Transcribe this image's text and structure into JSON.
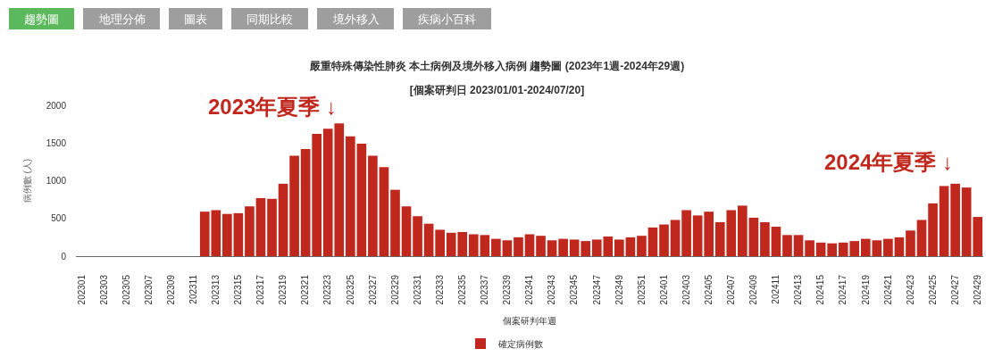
{
  "chart_data": {
    "type": "bar",
    "title": "嚴重特殊傳染性肺炎 本土病例及境外移入病例 趨勢圖 (2023年1週-2024年29週)",
    "subtitle": "[個案研判日 2023/01/01-2024/07/20]",
    "xlabel": "個案研判年週",
    "ylabel": "病例數 (人)",
    "categories": [
      "202301",
      null,
      "202303",
      null,
      "202305",
      null,
      "202307",
      null,
      "202309",
      null,
      "202311",
      null,
      "202313",
      null,
      "202315",
      null,
      "202317",
      null,
      "202319",
      null,
      "202321",
      null,
      "202323",
      null,
      "202325",
      null,
      "202327",
      null,
      "202329",
      null,
      "202331",
      null,
      "202333",
      null,
      "202335",
      null,
      "202337",
      null,
      "202339",
      null,
      "202341",
      null,
      "202343",
      null,
      "202345",
      null,
      "202347",
      null,
      "202349",
      null,
      "202351",
      null,
      "202401",
      null,
      "202403",
      null,
      "202405",
      null,
      "202407",
      null,
      "202409",
      null,
      "202411",
      null,
      "202413",
      null,
      "202415",
      null,
      "202417",
      null,
      "202419",
      null,
      "202421",
      null,
      "202423",
      null,
      "202425",
      null,
      "202427",
      null,
      "202429"
    ],
    "series": [
      {
        "name": "確定病例數",
        "color": "#c0281e",
        "values": [
          null,
          null,
          null,
          null,
          null,
          null,
          null,
          null,
          null,
          null,
          null,
          590,
          610,
          560,
          570,
          660,
          770,
          760,
          960,
          1330,
          1420,
          1620,
          1690,
          1760,
          1590,
          1490,
          1330,
          1180,
          880,
          660,
          530,
          430,
          350,
          310,
          320,
          290,
          280,
          230,
          210,
          250,
          290,
          270,
          210,
          230,
          220,
          200,
          220,
          260,
          220,
          250,
          270,
          380,
          420,
          480,
          610,
          540,
          590,
          450,
          610,
          670,
          510,
          450,
          390,
          280,
          280,
          210,
          180,
          170,
          180,
          200,
          230,
          210,
          230,
          250,
          340,
          480,
          700,
          930,
          960,
          910,
          520
        ]
      }
    ],
    "ylim": [
      0,
      2000
    ],
    "yticks": [
      0,
      500,
      1000,
      1500,
      2000
    ],
    "legend": "bottom",
    "annotations": [
      "趨勢圖",
      "地理分佈",
      "圖表",
      "同期比較",
      "境外移入",
      "疾病小百科",
      "2023年夏季 ↓",
      "2024年夏季 ↓"
    ]
  }
}
